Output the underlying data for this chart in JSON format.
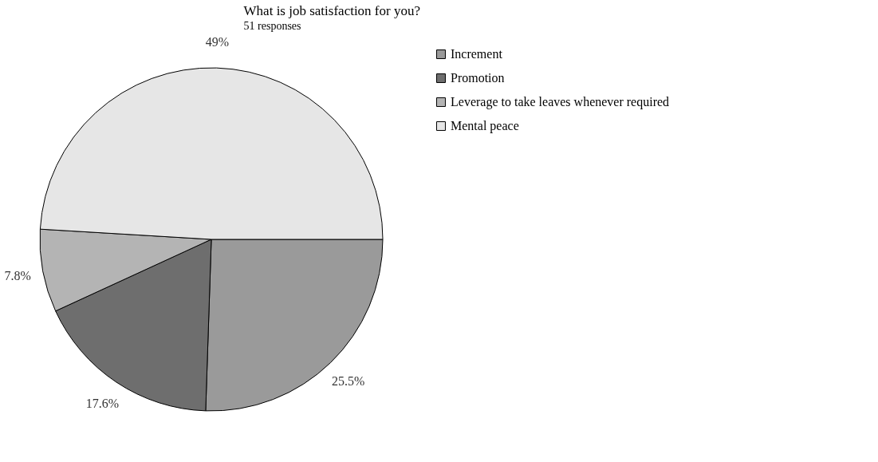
{
  "chart_data": {
    "type": "pie",
    "title": "What is job satisfaction for you?",
    "subtitle": "51 responses",
    "categories": [
      "Increment",
      "Promotion",
      "Leverage to take leaves whenever required",
      "Mental peace"
    ],
    "values": [
      25.5,
      17.6,
      7.8,
      49
    ],
    "value_labels": [
      "25.5%",
      "17.6%",
      "7.8%",
      "49%"
    ],
    "colors": [
      "#9a9a9a",
      "#6e6e6e",
      "#b4b4b4",
      "#e6e6e6"
    ],
    "legend": "right"
  }
}
